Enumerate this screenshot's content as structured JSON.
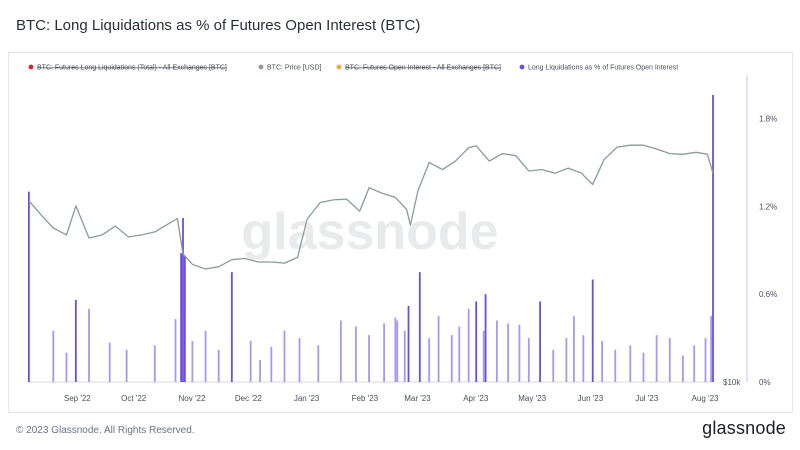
{
  "title": "BTC: Long Liquidations as % of Futures Open Interest (BTC)",
  "watermark": "glassnode",
  "footer": {
    "copyright": "© 2023 Glassnode. All Rights Reserved.",
    "logo": "glassnode"
  },
  "colors": {
    "bars": "#6a4fe0",
    "bars_light": "#a898ee",
    "price_line": "#8c9a9a",
    "oi_legend": "#f4a93b",
    "liq_legend": "#c8283a"
  },
  "chart_data": {
    "type": "bar",
    "title": "BTC: Long Liquidations as % of Futures Open Interest (BTC)",
    "legend_position": "top",
    "legend": [
      {
        "label": "BTC: Futures Long Liquidations (Total) - All Exchanges [BTC]",
        "color": "#c8283a",
        "disabled": true
      },
      {
        "label": "BTC: Price [USD]",
        "color": "#8c9a9a",
        "disabled": false
      },
      {
        "label": "BTC: Futures Open Interest - All Exchanges [BTC]",
        "color": "#f4a93b",
        "disabled": true
      },
      {
        "label": "Long Liquidations as % of Futures Open Interest",
        "color": "#6a4fe0",
        "disabled": false
      }
    ],
    "x_tick_labels": [
      "Sep '22",
      "Oct '22",
      "Nov '22",
      "Dec '22",
      "Jan '23",
      "Feb '23",
      "Mar '23",
      "Apr '23",
      "May '23",
      "Jun '23",
      "Jul '23",
      "Aug '23"
    ],
    "right_axis": {
      "ticks": [
        "0%",
        "0.6%",
        "1.2%",
        "1.8%"
      ],
      "range": [
        0,
        1.96
      ]
    },
    "left_axis": {
      "ticks": [
        "$10k"
      ],
      "scale": "log",
      "range": [
        10000,
        40000
      ]
    },
    "series": [
      {
        "name": "BTC: Price [USD]",
        "style": "line",
        "x": [
          "2022-08-19",
          "2022-08-25",
          "2022-09-01",
          "2022-09-08",
          "2022-09-13",
          "2022-09-20",
          "2022-09-27",
          "2022-10-04",
          "2022-10-11",
          "2022-10-18",
          "2022-10-25",
          "2022-11-01",
          "2022-11-06",
          "2022-11-09",
          "2022-11-14",
          "2022-11-21",
          "2022-11-28",
          "2022-12-05",
          "2022-12-12",
          "2022-12-19",
          "2022-12-26",
          "2023-01-02",
          "2023-01-09",
          "2023-01-14",
          "2023-01-21",
          "2023-01-28",
          "2023-02-04",
          "2023-02-11",
          "2023-02-16",
          "2023-02-23",
          "2023-03-02",
          "2023-03-08",
          "2023-03-10",
          "2023-03-14",
          "2023-03-20",
          "2023-03-27",
          "2023-04-03",
          "2023-04-10",
          "2023-04-14",
          "2023-04-21",
          "2023-04-28",
          "2023-05-05",
          "2023-05-12",
          "2023-05-19",
          "2023-05-26",
          "2023-06-02",
          "2023-06-09",
          "2023-06-15",
          "2023-06-21",
          "2023-06-28",
          "2023-07-05",
          "2023-07-12",
          "2023-07-19",
          "2023-07-26",
          "2023-08-02",
          "2023-08-09",
          "2023-08-15",
          "2023-08-18"
        ],
        "values": [
          23000,
          21500,
          20000,
          19300,
          22400,
          19000,
          19300,
          20200,
          19100,
          19300,
          19600,
          20400,
          21000,
          17500,
          16600,
          16200,
          16400,
          17000,
          17100,
          16800,
          16800,
          16700,
          17200,
          20900,
          22800,
          23100,
          23200,
          21800,
          24600,
          23900,
          23400,
          22000,
          20300,
          24200,
          28000,
          27000,
          28200,
          30200,
          30500,
          28200,
          29300,
          29000,
          26800,
          27000,
          26500,
          27200,
          26500,
          25000,
          28400,
          30300,
          30600,
          30600,
          30000,
          29300,
          29200,
          29500,
          29200,
          26500
        ]
      },
      {
        "name": "Long Liquidations as % of Futures Open Interest",
        "style": "bar",
        "x": [
          "2022-08-19",
          "2022-09-01",
          "2022-09-08",
          "2022-09-13",
          "2022-09-20",
          "2022-10-01",
          "2022-10-10",
          "2022-10-25",
          "2022-11-05",
          "2022-11-08",
          "2022-11-09",
          "2022-11-10",
          "2022-11-14",
          "2022-11-21",
          "2022-11-28",
          "2022-12-05",
          "2022-12-15",
          "2022-12-20",
          "2022-12-26",
          "2023-01-02",
          "2023-01-10",
          "2023-01-20",
          "2023-02-01",
          "2023-02-09",
          "2023-02-16",
          "2023-02-24",
          "2023-03-02",
          "2023-03-03",
          "2023-03-07",
          "2023-03-09",
          "2023-03-15",
          "2023-03-20",
          "2023-03-25",
          "2023-04-01",
          "2023-04-05",
          "2023-04-10",
          "2023-04-14",
          "2023-04-18",
          "2023-04-19",
          "2023-04-25",
          "2023-05-01",
          "2023-05-07",
          "2023-05-12",
          "2023-05-18",
          "2023-05-25",
          "2023-06-01",
          "2023-06-05",
          "2023-06-10",
          "2023-06-15",
          "2023-06-20",
          "2023-06-27",
          "2023-07-05",
          "2023-07-12",
          "2023-07-19",
          "2023-07-26",
          "2023-08-02",
          "2023-08-08",
          "2023-08-14",
          "2023-08-17",
          "2023-08-18"
        ],
        "values": [
          1.3,
          0.35,
          0.2,
          0.56,
          0.5,
          0.27,
          0.22,
          0.25,
          0.43,
          0.88,
          1.12,
          0.86,
          0.28,
          0.35,
          0.22,
          0.75,
          0.28,
          0.15,
          0.24,
          0.35,
          0.3,
          0.25,
          0.42,
          0.38,
          0.32,
          0.4,
          0.44,
          0.42,
          0.35,
          0.52,
          0.75,
          0.3,
          0.45,
          0.32,
          0.38,
          0.5,
          0.55,
          0.35,
          0.6,
          0.42,
          0.4,
          0.39,
          0.3,
          0.55,
          0.22,
          0.3,
          0.45,
          0.32,
          0.7,
          0.28,
          0.22,
          0.25,
          0.2,
          0.32,
          0.3,
          0.18,
          0.25,
          0.3,
          0.45,
          1.96
        ]
      }
    ]
  }
}
